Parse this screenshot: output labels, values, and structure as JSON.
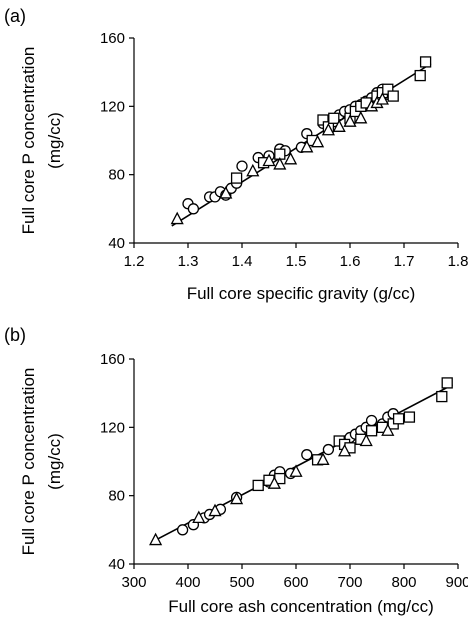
{
  "chart_data": [
    {
      "type": "scatter",
      "panel_label": "(a)",
      "xlabel": "Full core specific gravity (g/cc)",
      "ylabel_line1": "Full core P concentration",
      "ylabel_line2": "(mg/cc)",
      "xlim": [
        1.2,
        1.8
      ],
      "ylim": [
        40,
        160
      ],
      "xticks": [
        1.2,
        1.3,
        1.4,
        1.5,
        1.6,
        1.7,
        1.8
      ],
      "yticks": [
        40,
        80,
        120,
        160
      ],
      "xtick_labels": [
        "1.2",
        "1.3",
        "1.4",
        "1.5",
        "1.6",
        "1.7",
        "1.8"
      ],
      "ytick_labels": [
        "40",
        "80",
        "120",
        "160"
      ],
      "fit_line": {
        "x": [
          1.27,
          1.75
        ],
        "y": [
          50,
          145
        ]
      },
      "series": [
        {
          "marker": "circle",
          "points": [
            [
              1.3,
              63
            ],
            [
              1.31,
              60
            ],
            [
              1.34,
              67
            ],
            [
              1.35,
              67
            ],
            [
              1.36,
              70
            ],
            [
              1.37,
              68
            ],
            [
              1.38,
              72
            ],
            [
              1.39,
              75
            ],
            [
              1.4,
              85
            ],
            [
              1.43,
              90
            ],
            [
              1.45,
              91
            ],
            [
              1.47,
              95
            ],
            [
              1.48,
              94
            ],
            [
              1.51,
              96
            ],
            [
              1.52,
              104
            ],
            [
              1.55,
              110
            ],
            [
              1.57,
              111
            ],
            [
              1.58,
              115
            ],
            [
              1.59,
              117
            ],
            [
              1.6,
              118
            ],
            [
              1.61,
              120
            ],
            [
              1.62,
              121
            ],
            [
              1.63,
              123
            ],
            [
              1.64,
              125
            ],
            [
              1.65,
              128
            ],
            [
              1.66,
              130
            ],
            [
              1.67,
              127
            ]
          ]
        },
        {
          "marker": "square",
          "points": [
            [
              1.39,
              78
            ],
            [
              1.44,
              87
            ],
            [
              1.47,
              92
            ],
            [
              1.53,
              100
            ],
            [
              1.55,
              112
            ],
            [
              1.56,
              108
            ],
            [
              1.57,
              113
            ],
            [
              1.6,
              113
            ],
            [
              1.61,
              117
            ],
            [
              1.62,
              120
            ],
            [
              1.63,
              122
            ],
            [
              1.65,
              126
            ],
            [
              1.66,
              128
            ],
            [
              1.67,
              130
            ],
            [
              1.68,
              126
            ],
            [
              1.73,
              138
            ],
            [
              1.74,
              146
            ]
          ]
        },
        {
          "marker": "triangle",
          "points": [
            [
              1.28,
              54
            ],
            [
              1.37,
              69
            ],
            [
              1.42,
              82
            ],
            [
              1.45,
              88
            ],
            [
              1.47,
              86
            ],
            [
              1.49,
              89
            ],
            [
              1.52,
              96
            ],
            [
              1.54,
              99
            ],
            [
              1.56,
              106
            ],
            [
              1.58,
              108
            ],
            [
              1.6,
              111
            ],
            [
              1.62,
              113
            ],
            [
              1.64,
              120
            ],
            [
              1.65,
              122
            ],
            [
              1.66,
              124
            ]
          ]
        }
      ]
    },
    {
      "type": "scatter",
      "panel_label": "(b)",
      "xlabel": "Full core ash concentration (mg/cc)",
      "ylabel_line1": "Full core P concentration",
      "ylabel_line2": "(mg/cc)",
      "xlim": [
        300,
        900
      ],
      "ylim": [
        40,
        160
      ],
      "xticks": [
        300,
        400,
        500,
        600,
        700,
        800,
        900
      ],
      "yticks": [
        40,
        80,
        120,
        160
      ],
      "xtick_labels": [
        "300",
        "400",
        "500",
        "600",
        "700",
        "800",
        "900"
      ],
      "ytick_labels": [
        "40",
        "80",
        "120",
        "160"
      ],
      "fit_line": {
        "x": [
          340,
          890
        ],
        "y": [
          54,
          145
        ]
      },
      "series": [
        {
          "marker": "circle",
          "points": [
            [
              390,
              60
            ],
            [
              410,
              63
            ],
            [
              430,
              67
            ],
            [
              440,
              69
            ],
            [
              460,
              72
            ],
            [
              490,
              79
            ],
            [
              550,
              88
            ],
            [
              560,
              92
            ],
            [
              570,
              94
            ],
            [
              590,
              93
            ],
            [
              620,
              104
            ],
            [
              660,
              107
            ],
            [
              690,
              112
            ],
            [
              700,
              114
            ],
            [
              710,
              116
            ],
            [
              720,
              118
            ],
            [
              730,
              120
            ],
            [
              740,
              124
            ],
            [
              760,
              122
            ],
            [
              770,
              126
            ],
            [
              780,
              128
            ]
          ]
        },
        {
          "marker": "square",
          "points": [
            [
              530,
              86
            ],
            [
              550,
              89
            ],
            [
              570,
              90
            ],
            [
              640,
              101
            ],
            [
              680,
              112
            ],
            [
              690,
              110
            ],
            [
              700,
              108
            ],
            [
              720,
              113
            ],
            [
              740,
              118
            ],
            [
              760,
              120
            ],
            [
              780,
              122
            ],
            [
              790,
              125
            ],
            [
              810,
              126
            ],
            [
              870,
              138
            ],
            [
              880,
              146
            ]
          ]
        },
        {
          "marker": "triangle",
          "points": [
            [
              340,
              54
            ],
            [
              420,
              67
            ],
            [
              450,
              71
            ],
            [
              490,
              78
            ],
            [
              560,
              87
            ],
            [
              600,
              94
            ],
            [
              650,
              101
            ],
            [
              690,
              106
            ],
            [
              730,
              112
            ],
            [
              770,
              118
            ]
          ]
        }
      ]
    }
  ]
}
